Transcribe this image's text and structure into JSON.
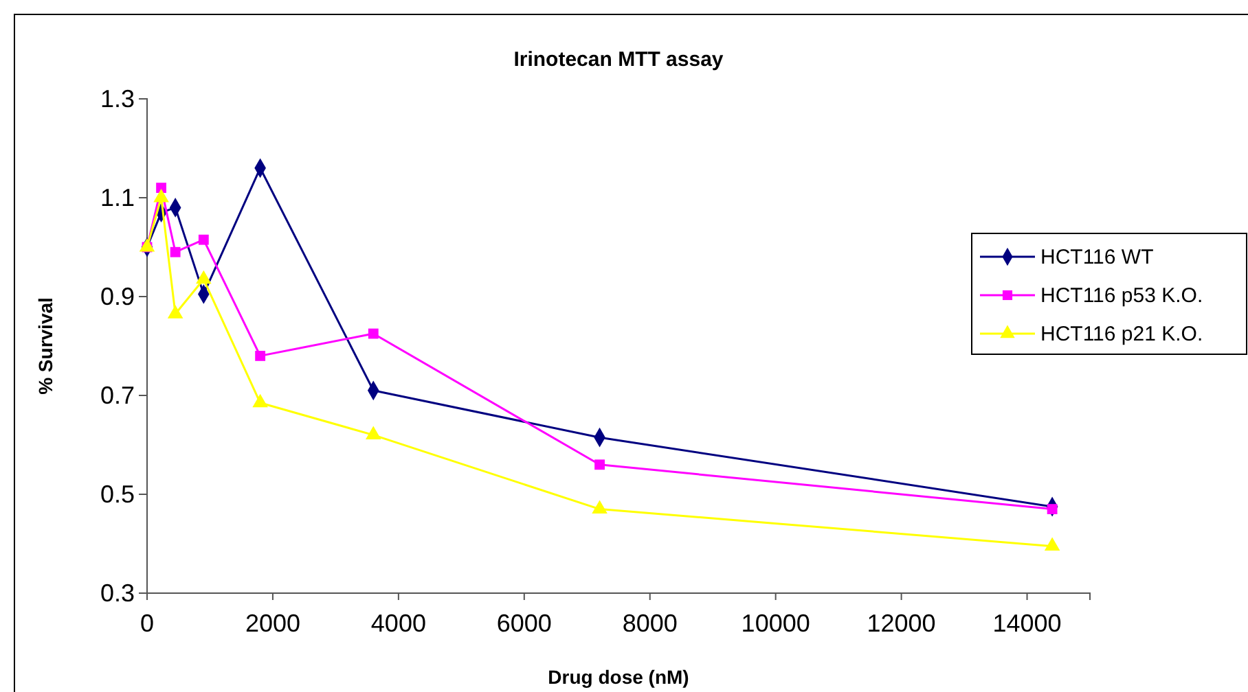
{
  "chart_data": {
    "type": "line",
    "title": "Irinotecan MTT assay",
    "xlabel": "Drug dose (nM)",
    "ylabel": "% Survival",
    "x": [
      0,
      225,
      450,
      900,
      1800,
      3600,
      7200,
      14400
    ],
    "series": [
      {
        "name": "HCT116 WT",
        "color": "#000080",
        "marker": "diamond",
        "values": [
          1.0,
          1.07,
          1.08,
          0.905,
          1.16,
          0.71,
          0.615,
          0.475
        ]
      },
      {
        "name": "HCT116 p53 K.O.",
        "color": "#ff00ff",
        "marker": "square",
        "values": [
          1.0,
          1.12,
          0.99,
          1.015,
          0.78,
          0.825,
          0.56,
          0.47
        ]
      },
      {
        "name": "HCT116 p21 K.O.",
        "color": "#ffff00",
        "marker": "triangle",
        "values": [
          1.0,
          1.1,
          0.865,
          0.935,
          0.685,
          0.62,
          0.47,
          0.395
        ]
      }
    ],
    "xlim": [
      0,
      15000
    ],
    "xticks": [
      0,
      2000,
      4000,
      6000,
      8000,
      10000,
      12000,
      14000
    ],
    "ylim": [
      0.3,
      1.3
    ],
    "yticks": [
      0.3,
      0.5,
      0.7,
      0.9,
      1.1,
      1.3
    ],
    "grid": false,
    "legend": "right",
    "line_style": "solid"
  }
}
